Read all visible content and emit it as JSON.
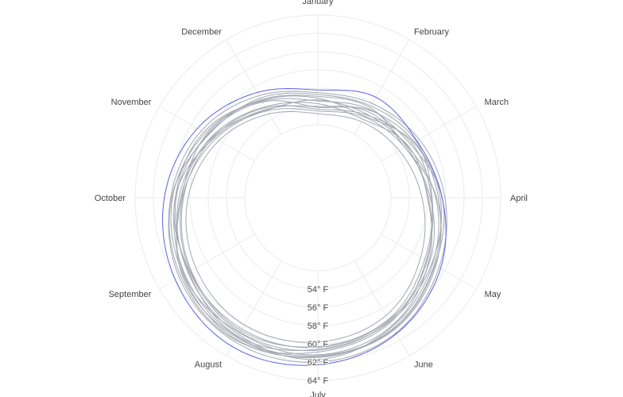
{
  "chart_data": {
    "type": "line",
    "subtype": "polar",
    "angular_categories": [
      "January",
      "February",
      "March",
      "April",
      "May",
      "June",
      "July",
      "August",
      "September",
      "October",
      "November",
      "December"
    ],
    "angular_direction": "clockwise",
    "angular_rotation": "January at top",
    "radial_range": [
      52,
      64
    ],
    "radial_ticks": [
      "54° F",
      "56° F",
      "58° F",
      "60° F",
      "62° F",
      "64° F"
    ],
    "radial_tick_values": [
      54,
      56,
      58,
      60,
      62,
      64
    ],
    "grid": true,
    "legend": "none",
    "colors": {
      "background_series": "#a3a8b3",
      "highlight_series": "#5b61e6",
      "grid": "#ebebeb"
    },
    "series": [
      {
        "highlight": false,
        "values": [
          53.2,
          53.6,
          54.3,
          55.4,
          57.0,
          58.9,
          59.8,
          60.1,
          59.4,
          58.2,
          56.5,
          54.6
        ]
      },
      {
        "highlight": false,
        "values": [
          55.5,
          55.9,
          56.8,
          57.9,
          59.3,
          61.1,
          62.0,
          62.2,
          61.5,
          60.1,
          58.7,
          56.9
        ]
      },
      {
        "highlight": false,
        "values": [
          54.0,
          54.9,
          55.2,
          56.1,
          57.8,
          59.6,
          60.7,
          61.0,
          60.2,
          59.6,
          57.1,
          55.2
        ]
      },
      {
        "highlight": false,
        "values": [
          54.9,
          54.3,
          56.1,
          57.2,
          58.7,
          60.5,
          61.5,
          61.7,
          61.1,
          58.9,
          58.0,
          56.3
        ]
      },
      {
        "highlight": false,
        "values": [
          53.7,
          54.5,
          55.9,
          56.4,
          57.5,
          59.4,
          60.3,
          60.8,
          60.0,
          58.7,
          57.2,
          55.4
        ]
      },
      {
        "highlight": false,
        "values": [
          55.1,
          55.4,
          55.0,
          57.0,
          58.9,
          60.7,
          61.4,
          61.9,
          61.0,
          59.9,
          58.2,
          56.4
        ]
      },
      {
        "highlight": false,
        "values": [
          54.3,
          53.9,
          55.4,
          56.0,
          58.0,
          60.2,
          61.2,
          61.1,
          60.9,
          59.0,
          57.4,
          55.5
        ]
      },
      {
        "highlight": false,
        "values": [
          53.9,
          55.1,
          56.2,
          57.4,
          58.4,
          59.7,
          60.6,
          61.5,
          60.3,
          59.5,
          57.9,
          56.1
        ]
      },
      {
        "highlight": false,
        "values": [
          54.7,
          54.6,
          55.3,
          56.9,
          58.5,
          60.3,
          61.7,
          61.3,
          60.4,
          59.2,
          57.3,
          55.1
        ]
      },
      {
        "highlight": false,
        "values": [
          55.3,
          55.6,
          56.4,
          56.5,
          57.7,
          59.8,
          60.9,
          62.0,
          61.3,
          60.0,
          57.8,
          56.6
        ]
      },
      {
        "highlight": false,
        "values": [
          53.5,
          54.2,
          55.0,
          56.3,
          58.1,
          59.5,
          60.4,
          60.6,
          60.1,
          58.8,
          56.9,
          55.0
        ]
      },
      {
        "highlight": false,
        "values": [
          54.6,
          55.2,
          55.7,
          57.6,
          58.8,
          60.6,
          61.3,
          61.6,
          60.8,
          59.6,
          58.4,
          56.2
        ]
      },
      {
        "highlight": true,
        "values": [
          55.8,
          56.7,
          56.5,
          57.6,
          59.5,
          61.2,
          62.3,
          62.8,
          62.0,
          60.8,
          59.2,
          57.3
        ]
      }
    ]
  }
}
